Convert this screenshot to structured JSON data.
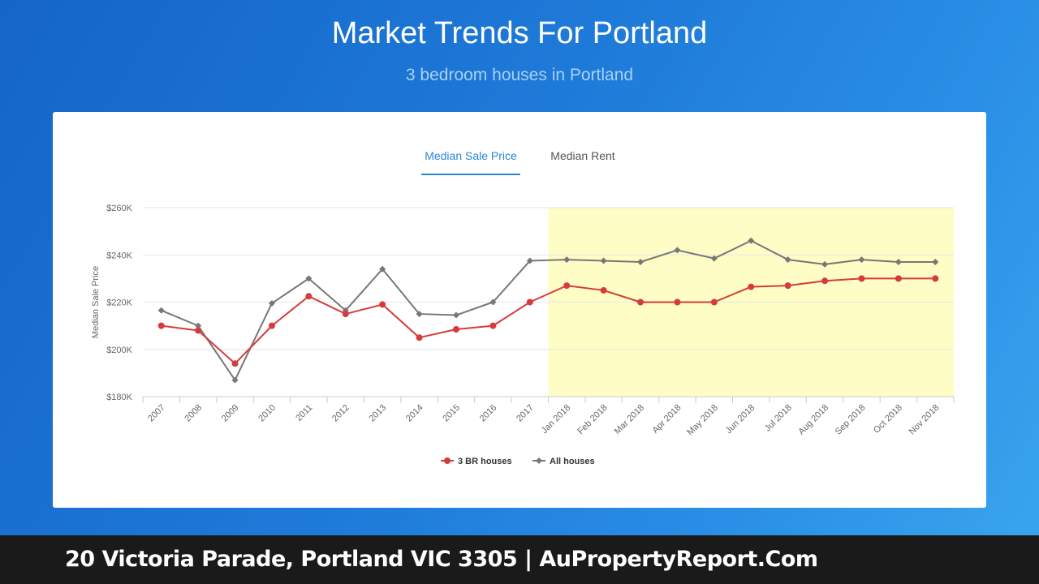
{
  "header": {
    "title": "Market Trends For Portland",
    "subtitle": "3 bedroom houses in Portland"
  },
  "tabs": [
    {
      "label": "Median Sale Price",
      "active": true
    },
    {
      "label": "Median Rent",
      "active": false
    }
  ],
  "footer": {
    "text": "20 Victoria Parade, Portland VIC 3305 | AuPropertyReport.Com"
  },
  "colors": {
    "series_3br": "#d63b3b",
    "series_all": "#777777",
    "highlight": "#fefdc6",
    "accent": "#2a86d4"
  },
  "chart_data": {
    "type": "line",
    "ylabel": "Median Sale Price",
    "xlabel": "",
    "ylim": [
      180000,
      260000
    ],
    "yticks": [
      180000,
      200000,
      220000,
      240000,
      260000
    ],
    "ytick_labels": [
      "$180K",
      "$200K",
      "$220K",
      "$240K",
      "$260K"
    ],
    "categories": [
      "2007",
      "2008",
      "2009",
      "2010",
      "2011",
      "2012",
      "2013",
      "2014",
      "2015",
      "2016",
      "2017",
      "Jan 2018",
      "Feb 2018",
      "Mar 2018",
      "Apr 2018",
      "May 2018",
      "Jun 2018",
      "Jul 2018",
      "Aug 2018",
      "Sep 2018",
      "Oct 2018",
      "Nov 2018"
    ],
    "highlight_range": [
      "Jan 2018",
      "Nov 2018"
    ],
    "grid": true,
    "legend_position": "bottom-center",
    "series": [
      {
        "name": "3 BR houses",
        "marker": "circle",
        "values": [
          210000,
          208000,
          194000,
          210000,
          222500,
          215000,
          219000,
          205000,
          208500,
          210000,
          220000,
          227000,
          225000,
          220000,
          220000,
          220000,
          226500,
          227000,
          229000,
          230000,
          230000,
          230000
        ]
      },
      {
        "name": "All houses",
        "marker": "diamond",
        "values": [
          216500,
          210000,
          187000,
          219500,
          230000,
          216500,
          234000,
          215000,
          214500,
          220000,
          237500,
          238000,
          237500,
          237000,
          242000,
          238500,
          246000,
          238000,
          236000,
          238000,
          237000,
          237000
        ]
      }
    ]
  }
}
